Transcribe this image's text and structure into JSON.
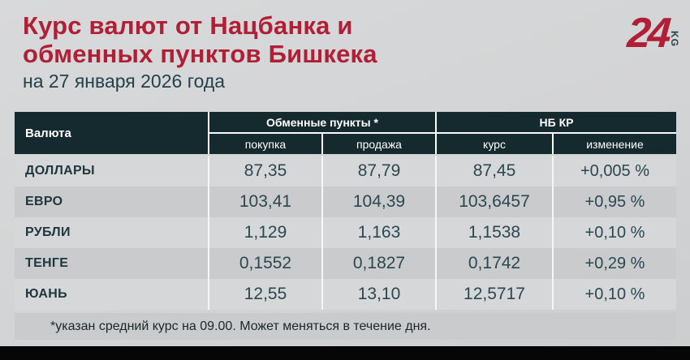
{
  "header": {
    "title_line1": "Курс валют от Нацбанка и",
    "title_line2": "обменных пунктов Бишкека",
    "date": "на 27 января 2026 года"
  },
  "logo": {
    "number": "24",
    "suffix": "KG"
  },
  "colors": {
    "accent_red": "#b01f35",
    "header_teal": "#142a2e",
    "text_dark": "#24414a",
    "row_light": "#d6d7d8",
    "row_dark": "#c9cbcc",
    "background": "#d3d4d5",
    "bottom_bar": "#060606"
  },
  "chart_data": {
    "type": "table",
    "title": "Курс валют от Нацбанка и обменных пунктов Бишкека",
    "subtitle": "на 27 января 2026 года",
    "first_column": "Валюта",
    "column_groups": [
      {
        "label": "Обменные пункты *",
        "children": [
          "покупка",
          "продажа"
        ]
      },
      {
        "label": "НБ КР",
        "children": [
          "курс",
          "изменение"
        ]
      }
    ],
    "rows": [
      {
        "currency": "ДОЛЛАРЫ",
        "buy": "87,35",
        "sell": "87,79",
        "rate": "87,45",
        "change": "+0,005 %"
      },
      {
        "currency": "ЕВРО",
        "buy": "103,41",
        "sell": "104,39",
        "rate": "103,6457",
        "change": "+0,95 %"
      },
      {
        "currency": "РУБЛИ",
        "buy": "1,129",
        "sell": "1,163",
        "rate": "1,1538",
        "change": "+0,10 %"
      },
      {
        "currency": "ТЕНГЕ",
        "buy": "0,1552",
        "sell": "0,1827",
        "rate": "0,1742",
        "change": "+0,29 %"
      },
      {
        "currency": "ЮАНЬ",
        "buy": "12,55",
        "sell": "13,10",
        "rate": "12,5717",
        "change": "+0,10 %"
      }
    ],
    "footnote": "*указан средний курс на 09.00. Может меняться в течение дня."
  }
}
